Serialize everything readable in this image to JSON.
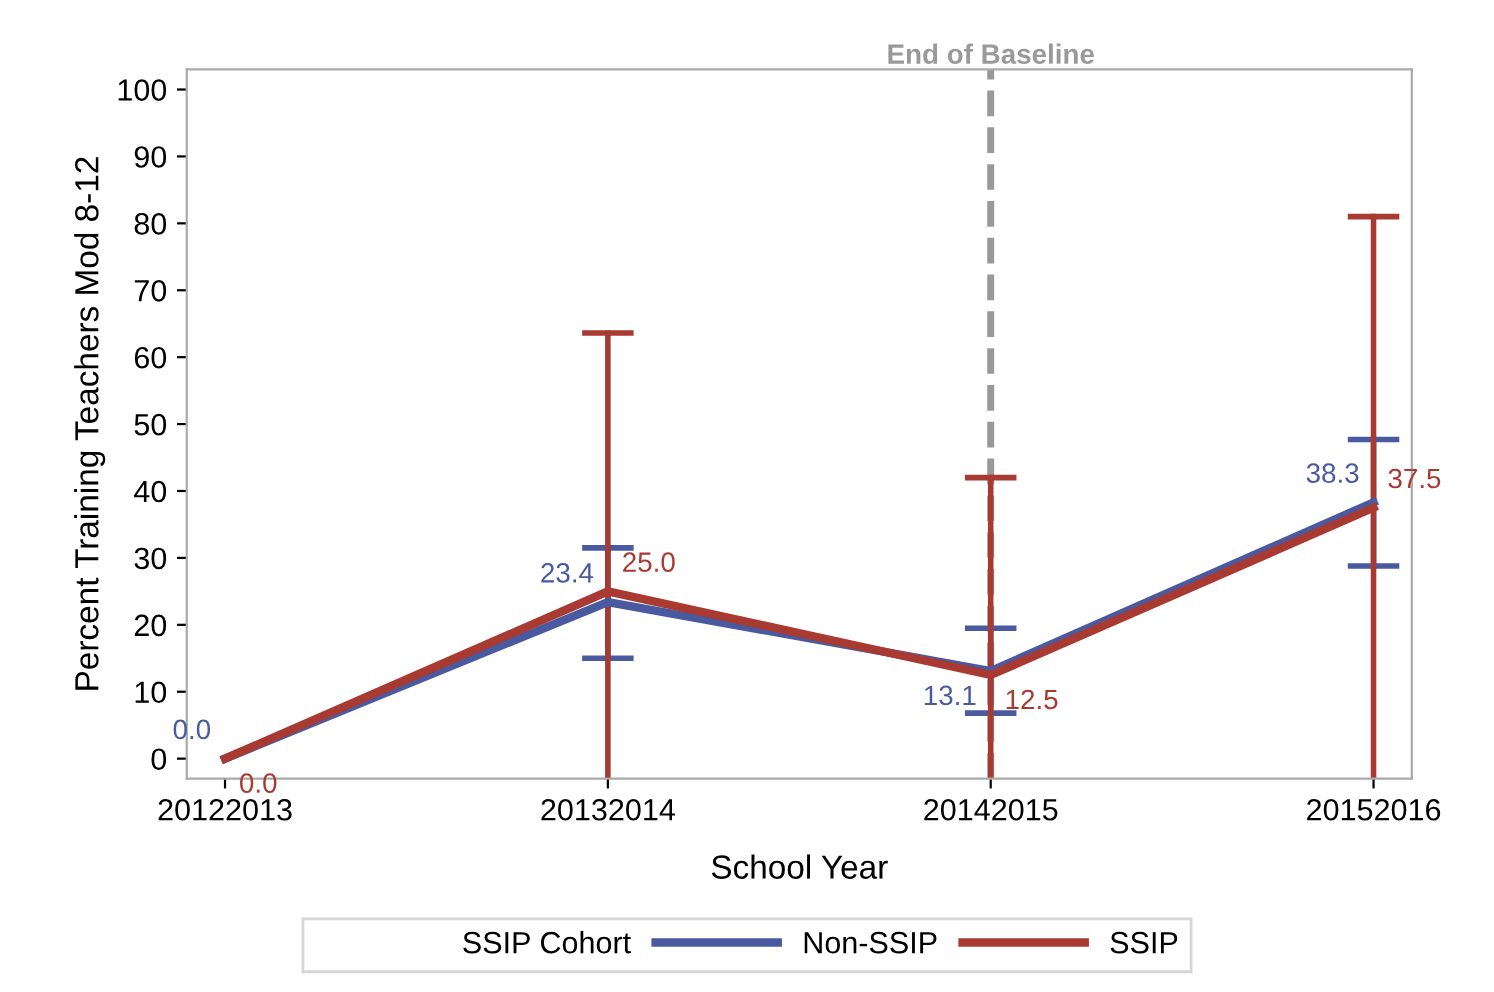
{
  "chart_data": {
    "type": "line",
    "xlabel": "School Year",
    "ylabel": "Percent Training Teachers Mod 8-12",
    "legend_title": "SSIP Cohort",
    "categories": [
      "20122013",
      "20132014",
      "20142015",
      "20152016"
    ],
    "series": [
      {
        "name": "Non-SSIP",
        "color": "#4a5aa0",
        "values": [
          0.0,
          23.4,
          13.1,
          38.3
        ],
        "value_labels": [
          "0.0",
          "23.4",
          "13.1",
          "38.3"
        ],
        "errors": [
          null,
          [
            15.0,
            31.5
          ],
          [
            6.8,
            19.5
          ],
          [
            28.8,
            47.7
          ]
        ]
      },
      {
        "name": "SSIP",
        "color": "#a83a32",
        "values": [
          0.0,
          25.0,
          12.5,
          37.5
        ],
        "value_labels": [
          "0.0",
          "25.0",
          "12.5",
          "37.5"
        ],
        "errors": [
          null,
          [
            -3,
            63.6
          ],
          [
            -3,
            42.0
          ],
          [
            -3,
            81.0
          ]
        ]
      }
    ],
    "ylim": [
      -3,
      103
    ],
    "yticks": [
      0,
      10,
      20,
      30,
      40,
      50,
      60,
      70,
      80,
      90,
      100
    ],
    "ref_lines": [
      {
        "axis": "x",
        "value": "20142015",
        "label": "End of Baseline",
        "color": "#999999",
        "line_style": "dashed"
      }
    ],
    "legend": "bottom",
    "grid": false,
    "marker": "none",
    "line_style": "solid"
  }
}
